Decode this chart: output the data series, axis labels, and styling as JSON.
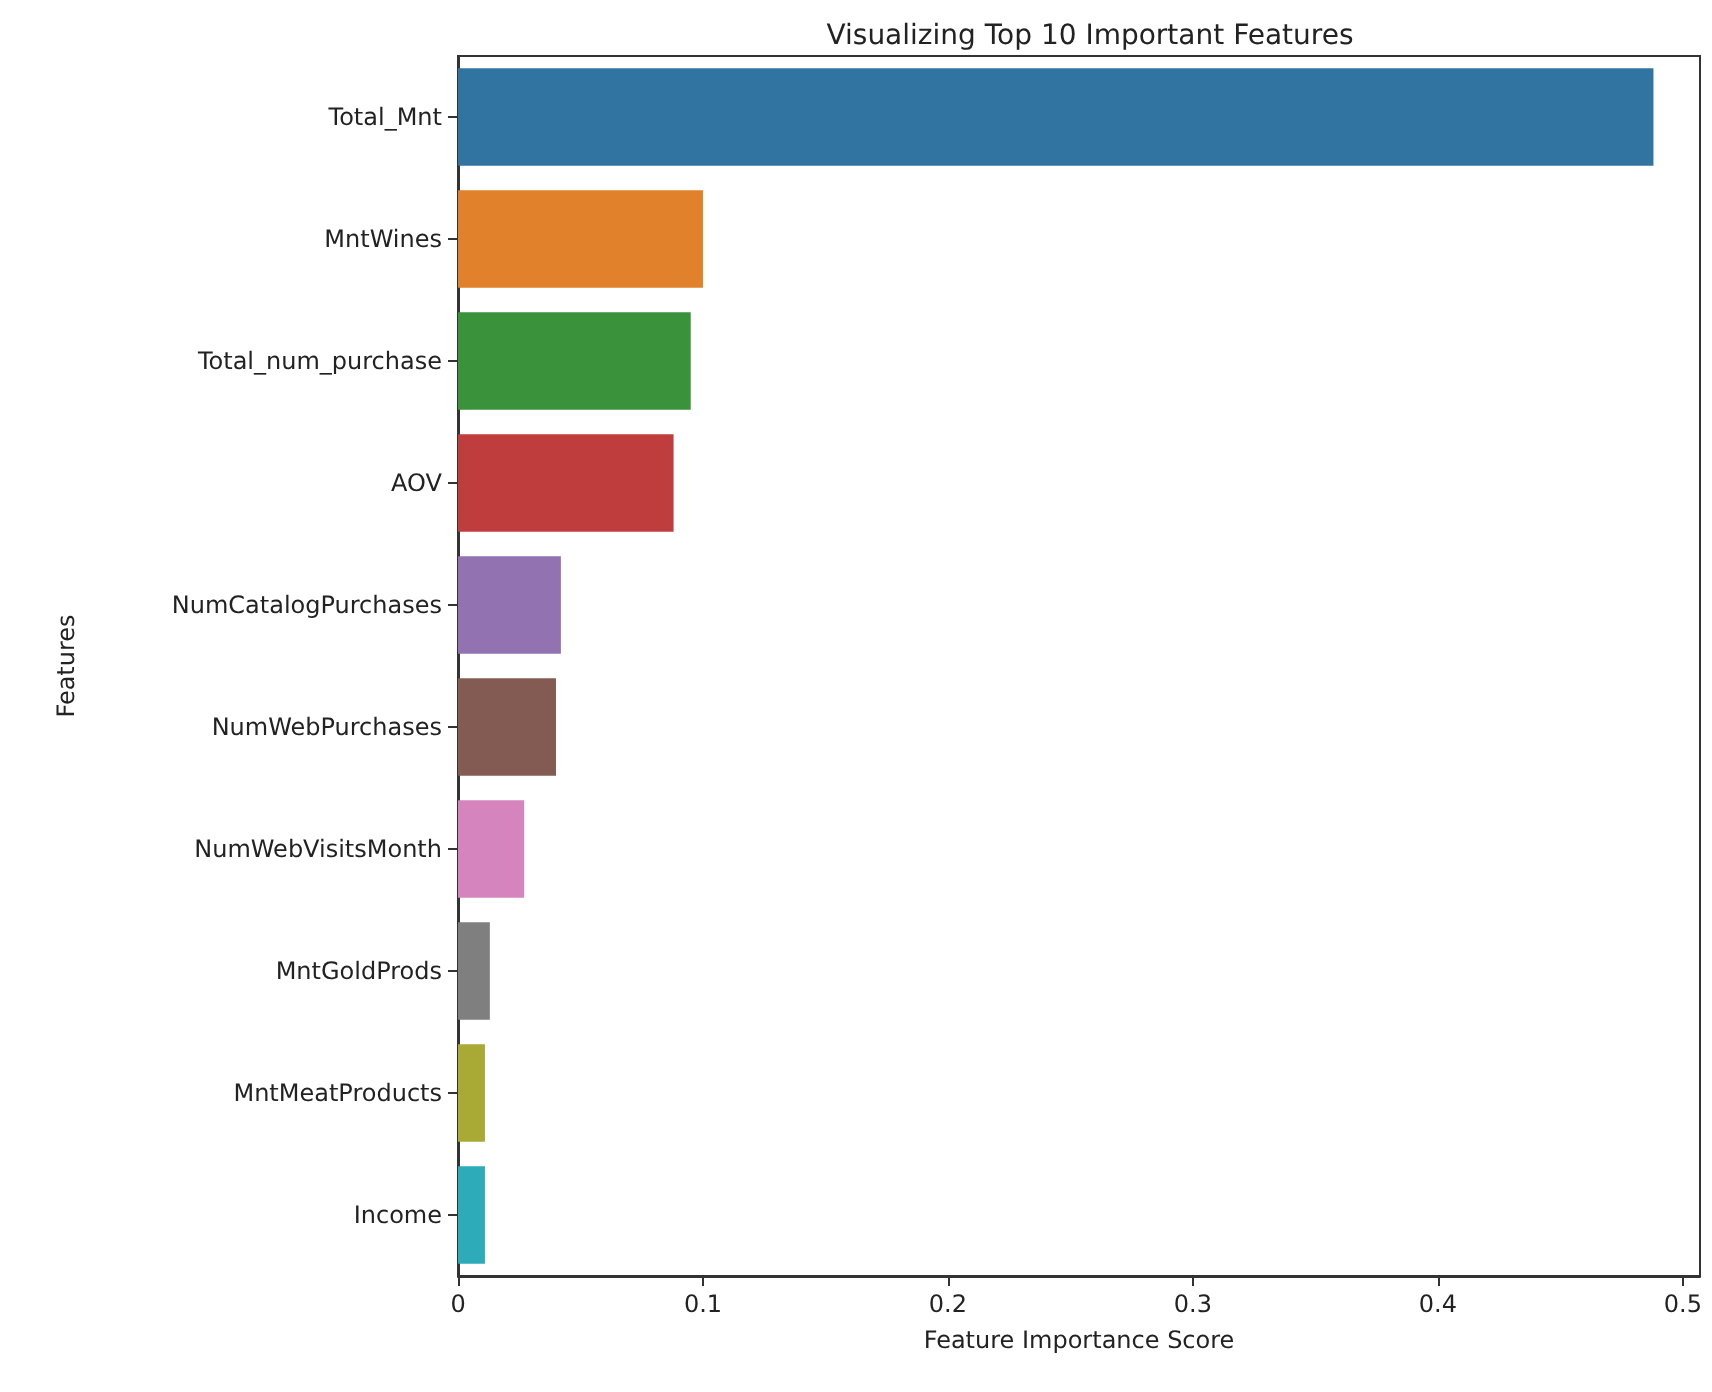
{
  "chart_data": {
    "type": "bar",
    "orientation": "horizontal",
    "title": "Visualizing Top 10 Important Features",
    "xlabel": "Feature Importance Score",
    "ylabel": "Features",
    "categories": [
      "Total_Mnt",
      "MntWines",
      "Total_num_purchase",
      "AOV",
      "NumCatalogPurchases",
      "NumWebPurchases",
      "NumWebVisitsMonth",
      "MntGoldProds",
      "MntMeatProducts",
      "Income"
    ],
    "values": [
      0.488,
      0.1,
      0.095,
      0.088,
      0.042,
      0.04,
      0.027,
      0.013,
      0.011,
      0.011
    ],
    "colors": [
      "#3274a1",
      "#e1812c",
      "#3a923a",
      "#c03d3e",
      "#9372b2",
      "#845b53",
      "#d684bd",
      "#7f7f7f",
      "#a9aa35",
      "#2eabb8"
    ],
    "xlim": [
      0,
      0.507
    ],
    "xticks": [
      0,
      0.1,
      0.2,
      0.3,
      0.4,
      0.5
    ],
    "grid": false
  }
}
